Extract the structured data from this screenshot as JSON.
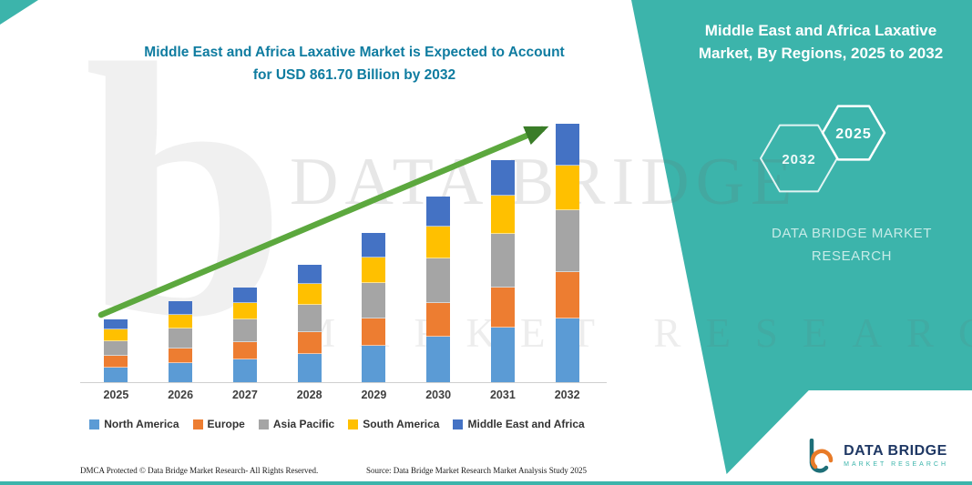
{
  "colors": {
    "teal": "#3CB4AB",
    "title_text": "#0F7CA0",
    "arrow_green": "#5CA83E",
    "arrow_head_green": "#3A7D28",
    "logo_navy": "#1F3864"
  },
  "header": {
    "title_line1": "Middle East and Africa Laxative Market is Expected to Account",
    "title_line2": "for USD 861.70 Billion by 2032"
  },
  "side_panel": {
    "title_line1": "Middle East and Africa Laxative",
    "title_line2": "Market, By Regions, 2025 to 2032",
    "hexagon_back_label": "2032",
    "hexagon_front_label": "2025",
    "brand_line1": "DATA BRIDGE MARKET",
    "brand_line2": "RESEARCH"
  },
  "watermark": {
    "glyph": "b",
    "line1": "DATA BRIDGE",
    "line2": "MARKET RESEARCH"
  },
  "chart_data": {
    "type": "bar",
    "stacked": true,
    "title": "Middle East and Africa Laxative Market, By Regions, 2025 to 2032",
    "unit": "USD Billion",
    "categories": [
      "2025",
      "2026",
      "2027",
      "2028",
      "2029",
      "2030",
      "2031",
      "2032"
    ],
    "series": [
      {
        "name": "North America",
        "color": "#5B9BD5",
        "values": [
          50,
          65,
          77,
          96,
          123,
          154,
          185,
          215
        ]
      },
      {
        "name": "Europe",
        "color": "#ED7D31",
        "values": [
          36,
          47,
          55,
          69,
          89,
          111,
          133,
          155
        ]
      },
      {
        "name": "Asia Pacific",
        "color": "#A5A5A5",
        "values": [
          48,
          63,
          74,
          92,
          118,
          148,
          177,
          207
        ]
      },
      {
        "name": "South America",
        "color": "#FFC000",
        "values": [
          34,
          45,
          52,
          65,
          84,
          105,
          126,
          147
        ]
      },
      {
        "name": "Middle East and Africa",
        "color": "#4472C4",
        "values": [
          32,
          42,
          50,
          63,
          78,
          98,
          118,
          138
        ]
      }
    ],
    "totals_estimated": [
      200,
      262,
      308,
      385,
      492,
      616,
      739,
      862
    ],
    "highlight_value": "USD 861.70 Billion by 2032",
    "ylim": [
      0,
      900
    ],
    "grid": false,
    "legend_position": "bottom",
    "trend_arrow": "upward"
  },
  "footer": {
    "left": "DMCA Protected © Data Bridge Market Research-  All Rights Reserved.",
    "source": "Source: Data Bridge Market Research  Market Analysis Study 2025"
  },
  "logo": {
    "name": "DATA BRIDGE",
    "tagline": "MARKET RESEARCH"
  }
}
